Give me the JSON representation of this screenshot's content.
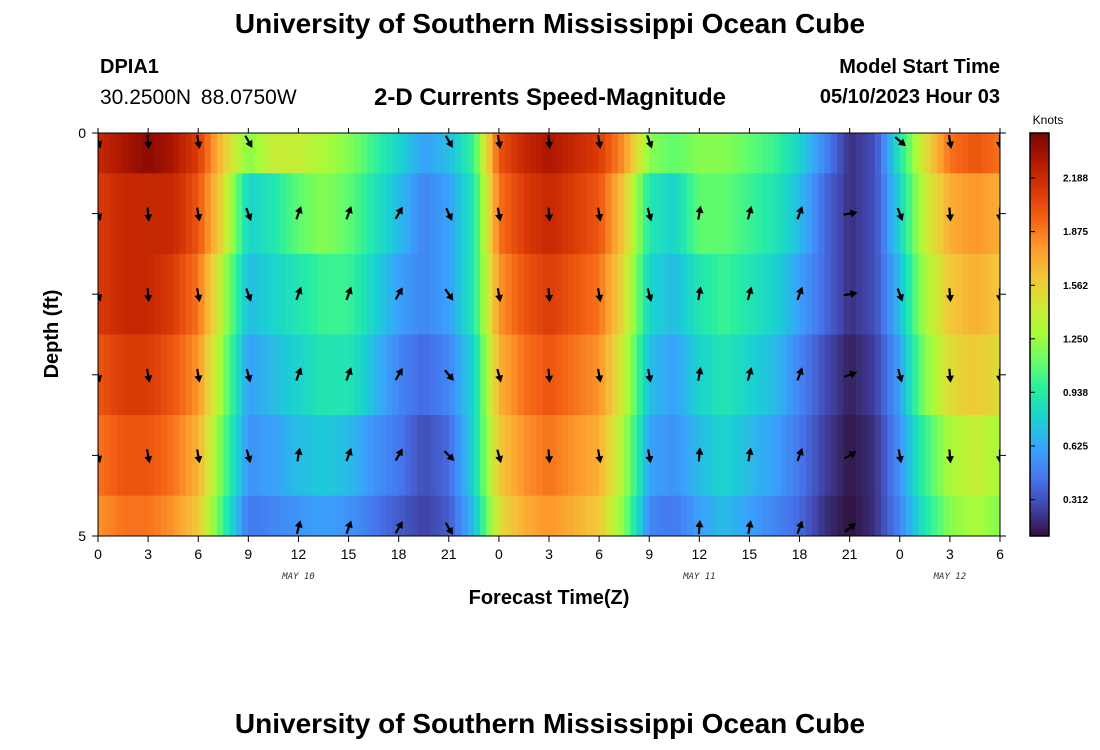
{
  "header": {
    "title": "University of Southern Mississippi Ocean Cube",
    "station_id": "DPIA1",
    "coords": "30.2500N  88.0750W",
    "chart_title": "2-D Currents Speed-Magnitude",
    "model_label": "Model Start Time",
    "model_value": "05/10/2023 Hour 03"
  },
  "footer": {
    "title": "University of Southern Mississippi Ocean Cube"
  },
  "colors": {
    "stops": [
      "#30123b",
      "#4145ab",
      "#4675ed",
      "#39a2fc",
      "#1bcfd4",
      "#24eca6",
      "#61fc6c",
      "#a4fc3b",
      "#d1e834",
      "#f3c63a",
      "#fe9b2d",
      "#f36315",
      "#d93806",
      "#b11901",
      "#7a0403"
    ],
    "arrow": "#000000"
  },
  "chart_data": {
    "type": "heatmap",
    "title": "2-D Currents Speed-Magnitude",
    "xlabel": "Forecast Time(Z)",
    "ylabel": "Depth (ft)",
    "colorbar_label": "Knots",
    "colorbar_ticks": [
      "2.188",
      "1.875",
      "1.562",
      "1.250",
      "0.938",
      "0.625",
      "0.312"
    ],
    "colorbar_range": [
      0.1,
      2.45
    ],
    "x_range": [
      0,
      54
    ],
    "x_ticks": [
      0,
      3,
      6,
      9,
      12,
      15,
      18,
      21,
      24,
      27,
      30,
      33,
      36,
      39,
      42,
      45,
      48,
      51,
      54
    ],
    "x_tick_labels": [
      "0",
      "3",
      "6",
      "9",
      "12",
      "15",
      "18",
      "21",
      "0",
      "3",
      "6",
      "9",
      "12",
      "15",
      "18",
      "21",
      "0",
      "3",
      "6"
    ],
    "date_labels": [
      {
        "text": "MAY 10",
        "hour": 12
      },
      {
        "text": "MAY 11",
        "hour": 36
      },
      {
        "text": "MAY 12",
        "hour": 51
      }
    ],
    "y_range": [
      0,
      5
    ],
    "y_tick_labels": [
      {
        "depth": 0,
        "label": "0"
      },
      {
        "depth": 5,
        "label": "5"
      }
    ],
    "y_ticks": [
      0,
      1,
      2,
      3,
      4,
      5
    ],
    "depth_levels": [
      0,
      1,
      2,
      3,
      4,
      5
    ],
    "hours": [
      0,
      1.5,
      3,
      4.5,
      6,
      7.5,
      9,
      10.5,
      12,
      13.5,
      15,
      16.5,
      18,
      19.5,
      21,
      22.5,
      24,
      25.5,
      27,
      28.5,
      30,
      31.5,
      33,
      34.5,
      36,
      37.5,
      39,
      40.5,
      42,
      43.5,
      45,
      46.5,
      48,
      49.5,
      51,
      52.5,
      54
    ],
    "speed": [
      [
        2.2,
        2.3,
        2.4,
        2.3,
        2.1,
        1.6,
        1.2,
        1.4,
        1.4,
        1.3,
        1.2,
        1.0,
        0.8,
        0.6,
        0.7,
        1.0,
        2.0,
        2.2,
        2.3,
        2.2,
        2.1,
        1.8,
        1.2,
        1.1,
        1.2,
        1.2,
        1.1,
        1.0,
        0.8,
        0.5,
        0.2,
        0.3,
        0.9,
        1.5,
        1.9,
        2.0,
        1.9
      ],
      [
        2.1,
        2.2,
        2.2,
        2.2,
        2.0,
        1.5,
        0.8,
        0.9,
        1.1,
        1.2,
        1.1,
        0.9,
        0.7,
        0.5,
        0.6,
        0.9,
        1.9,
        2.1,
        2.2,
        2.1,
        2.0,
        1.6,
        0.9,
        0.8,
        1.1,
        1.1,
        1.0,
        0.9,
        0.7,
        0.4,
        0.2,
        0.3,
        0.8,
        1.4,
        1.7,
        1.8,
        1.7
      ],
      [
        2.1,
        2.2,
        2.2,
        2.1,
        1.9,
        1.3,
        0.7,
        0.8,
        0.9,
        1.0,
        1.0,
        0.8,
        0.6,
        0.5,
        0.6,
        0.9,
        1.8,
        2.0,
        2.1,
        2.0,
        1.9,
        1.5,
        0.8,
        0.7,
        0.9,
        1.0,
        0.9,
        0.8,
        0.6,
        0.4,
        0.2,
        0.3,
        0.7,
        1.3,
        1.6,
        1.7,
        1.6
      ],
      [
        2.0,
        2.1,
        2.1,
        2.0,
        1.8,
        1.2,
        0.6,
        0.7,
        0.8,
        0.9,
        0.9,
        0.7,
        0.5,
        0.4,
        0.5,
        0.8,
        1.7,
        1.9,
        2.0,
        1.9,
        1.8,
        1.4,
        0.7,
        0.6,
        0.8,
        0.9,
        0.8,
        0.7,
        0.5,
        0.3,
        0.15,
        0.25,
        0.6,
        1.2,
        1.5,
        1.6,
        1.5
      ],
      [
        1.9,
        2.0,
        2.0,
        1.9,
        1.7,
        1.1,
        0.55,
        0.6,
        0.7,
        0.75,
        0.7,
        0.55,
        0.45,
        0.3,
        0.4,
        0.8,
        1.6,
        1.8,
        1.9,
        1.8,
        1.7,
        1.3,
        0.6,
        0.55,
        0.7,
        0.8,
        0.7,
        0.6,
        0.45,
        0.25,
        0.12,
        0.2,
        0.55,
        1.0,
        1.3,
        1.4,
        1.3
      ],
      [
        1.8,
        1.9,
        1.9,
        1.8,
        1.6,
        1.0,
        0.45,
        0.5,
        0.55,
        0.6,
        0.55,
        0.45,
        0.35,
        0.25,
        0.35,
        0.7,
        1.5,
        1.7,
        1.8,
        1.7,
        1.6,
        1.2,
        0.5,
        0.45,
        0.6,
        0.7,
        0.6,
        0.5,
        0.4,
        0.2,
        0.1,
        0.2,
        0.5,
        0.9,
        1.2,
        1.3,
        1.2
      ]
    ],
    "arrow_hours": [
      0,
      3,
      6,
      9,
      12,
      15,
      18,
      21,
      24,
      27,
      30,
      33,
      36,
      39,
      42,
      45,
      48,
      51,
      54
    ],
    "arrow_depths": [
      0,
      1,
      2,
      3,
      4,
      5
    ],
    "arrow_directions": [
      [
        160,
        175,
        170,
        150,
        null,
        null,
        null,
        150,
        170,
        175,
        170,
        160,
        null,
        null,
        null,
        null,
        130,
        170,
        180
      ],
      [
        160,
        175,
        170,
        160,
        20,
        20,
        30,
        155,
        170,
        175,
        170,
        165,
        10,
        15,
        20,
        80,
        160,
        175,
        180
      ],
      [
        160,
        175,
        170,
        160,
        20,
        20,
        30,
        145,
        170,
        175,
        170,
        165,
        10,
        15,
        20,
        80,
        160,
        175,
        180
      ],
      [
        165,
        170,
        170,
        165,
        20,
        20,
        30,
        140,
        165,
        175,
        170,
        170,
        10,
        15,
        20,
        70,
        165,
        175,
        180
      ],
      [
        165,
        170,
        170,
        165,
        10,
        20,
        30,
        135,
        165,
        175,
        170,
        170,
        5,
        10,
        20,
        60,
        170,
        175,
        180
      ],
      [
        null,
        null,
        null,
        null,
        15,
        20,
        30,
        150,
        null,
        null,
        null,
        null,
        5,
        10,
        20,
        50,
        null,
        null,
        null
      ]
    ]
  }
}
